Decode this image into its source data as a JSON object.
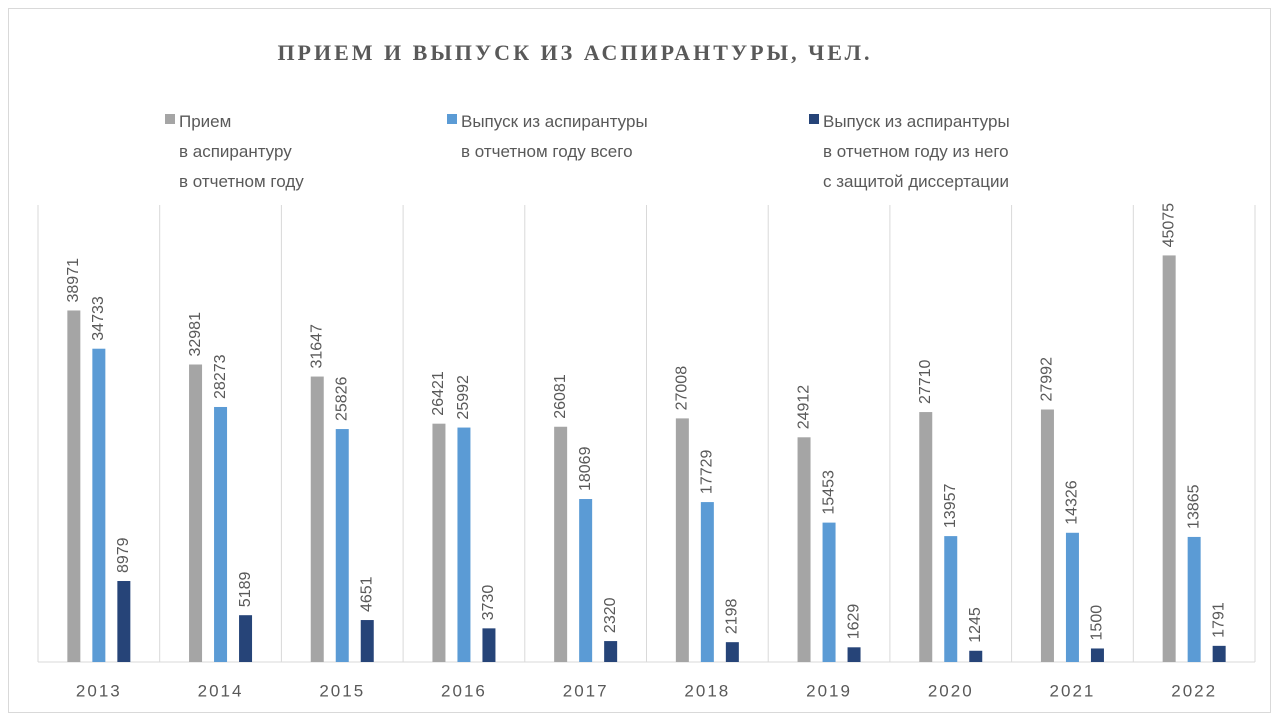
{
  "chart_data": {
    "type": "bar",
    "title": "ПРИЕМ И ВЫПУСК ИЗ АСПИРАНТУРЫ, ЧЕЛ.",
    "categories": [
      "2013",
      "2014",
      "2015",
      "2016",
      "2017",
      "2018",
      "2019",
      "2020",
      "2021",
      "2022"
    ],
    "series": [
      {
        "name": "Прием\nв аспирантуру\nв отчетном году",
        "color": "#a5a5a5",
        "values": [
          38971,
          32981,
          31647,
          26421,
          26081,
          27008,
          24912,
          27710,
          27992,
          45075
        ]
      },
      {
        "name": "Выпуск из аспирантуры\nв отчетном году всего",
        "color": "#5b9bd5",
        "values": [
          34733,
          28273,
          25826,
          25992,
          18069,
          17729,
          15453,
          13957,
          14326,
          13865
        ]
      },
      {
        "name": "Выпуск из аспирантуры\nв отчетном году из него\nс защитой диссертации",
        "color": "#264478",
        "values": [
          8979,
          5189,
          4651,
          3730,
          2320,
          2198,
          1629,
          1245,
          1500,
          1791
        ]
      }
    ],
    "ylim": [
      0,
      50000
    ]
  }
}
